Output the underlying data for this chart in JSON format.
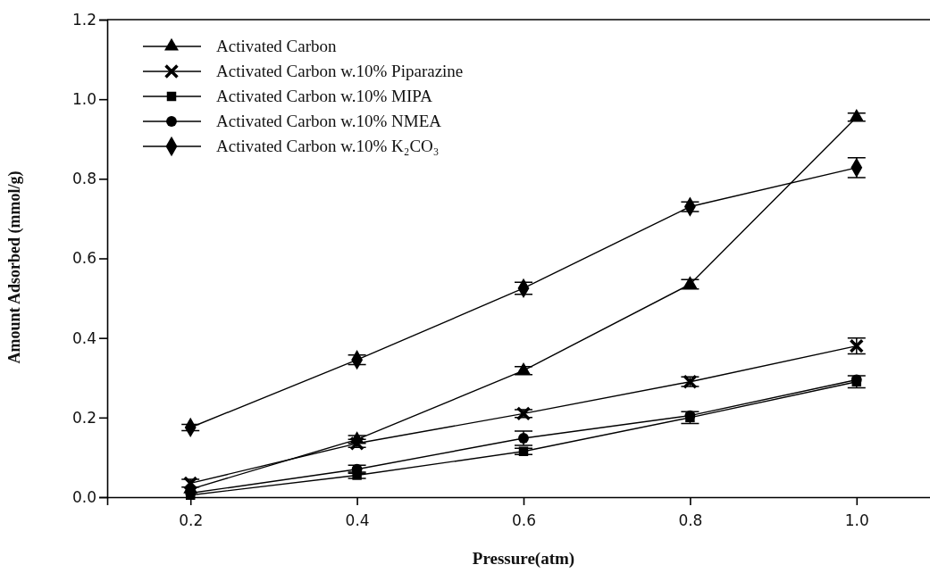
{
  "chart_data": {
    "type": "line",
    "xlabel": "Pressure(atm)",
    "ylabel": "Amount Adsorbed (mmol/g)",
    "x": [
      0.2,
      0.4,
      0.6,
      0.8,
      1.0
    ],
    "xlim": [
      0.1,
      1.1
    ],
    "xticks": [
      {
        "value": 0.2,
        "label": "0.2"
      },
      {
        "value": 0.4,
        "label": "0.4"
      },
      {
        "value": 0.6,
        "label": "0.6"
      },
      {
        "value": 0.8,
        "label": "0.8"
      },
      {
        "value": 1.0,
        "label": "1.0"
      }
    ],
    "ylim": [
      0,
      1.2
    ],
    "yticks": [
      {
        "value": 0,
        "label": "0.0"
      },
      {
        "value": 0.2,
        "label": "0.2"
      },
      {
        "value": 0.4,
        "label": "0.4"
      },
      {
        "value": 0.6,
        "label": "0.6"
      },
      {
        "value": 0.8,
        "label": "0.8"
      },
      {
        "value": 1.0,
        "label": "1.0"
      },
      {
        "value": 1.2,
        "label": "1.2"
      }
    ],
    "legend": "top left",
    "grid": false,
    "line_style": "solid",
    "series": [
      {
        "name": "Activated Carbon",
        "color": "#000000",
        "marker": "triangle",
        "values": [
          0.02,
          0.145,
          0.318,
          0.535,
          0.955
        ],
        "errors": [
          null,
          0.01,
          0.01,
          0.012,
          0.01
        ]
      },
      {
        "name": "Activated Carbon w.10% Piparazine",
        "color": "#000000",
        "marker": "cross",
        "values": [
          0.035,
          0.135,
          0.21,
          0.29,
          0.38
        ],
        "errors": [
          0.01,
          0.01,
          0.01,
          0.012,
          0.02
        ]
      },
      {
        "name": "Activated Carbon w.10% MIPA",
        "color": "#000000",
        "marker": "square",
        "values": [
          0.005,
          0.055,
          0.115,
          0.2,
          0.29
        ],
        "errors": [
          null,
          0.008,
          0.008,
          0.015,
          0.015
        ]
      },
      {
        "name": "Activated Carbon w.10% NMEA",
        "color": "#000000",
        "marker": "circle",
        "values": [
          0.01,
          0.07,
          0.148,
          0.205,
          0.295
        ],
        "errors": [
          null,
          0.01,
          0.018,
          null,
          null
        ]
      },
      {
        "name": "Activated Carbon w.10% K₂CO₃",
        "color": "#000000",
        "marker": "diamond",
        "values": [
          0.175,
          0.345,
          0.525,
          0.73,
          0.828
        ],
        "errors": [
          0.008,
          0.012,
          0.015,
          0.012,
          0.025
        ]
      }
    ]
  }
}
